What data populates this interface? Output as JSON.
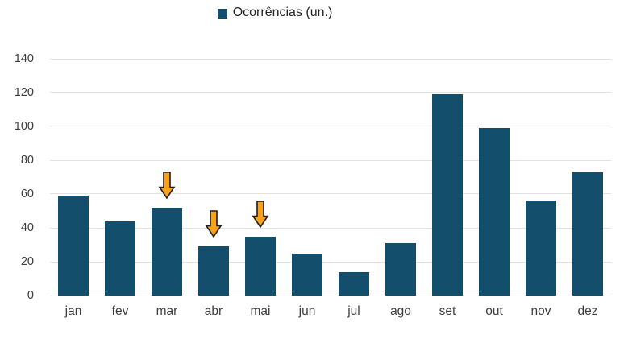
{
  "chart_data": {
    "type": "bar",
    "title": "",
    "legend": "Ocorrências (un.)",
    "legend_position": "top-center",
    "categories": [
      "jan",
      "fev",
      "mar",
      "abr",
      "mai",
      "jun",
      "jul",
      "ago",
      "set",
      "out",
      "nov",
      "dez"
    ],
    "values": [
      59,
      44,
      52,
      29,
      35,
      25,
      14,
      31,
      119,
      99,
      56,
      73
    ],
    "xlabel": "",
    "ylabel": "",
    "ylim": [
      0,
      140
    ],
    "yticks": [
      0,
      20,
      40,
      60,
      80,
      100,
      120,
      140
    ],
    "grid": true,
    "annotations": [
      {
        "type": "down-arrow",
        "above_category": "mar"
      },
      {
        "type": "down-arrow",
        "above_category": "abr"
      },
      {
        "type": "down-arrow",
        "above_category": "mai"
      }
    ]
  },
  "colors": {
    "bar": "#134e6d",
    "arrow_fill": "#f9a11b",
    "arrow_outline": "#1f1f1f",
    "gridline": "#e2e2e2",
    "text": "#3d3d3d"
  }
}
